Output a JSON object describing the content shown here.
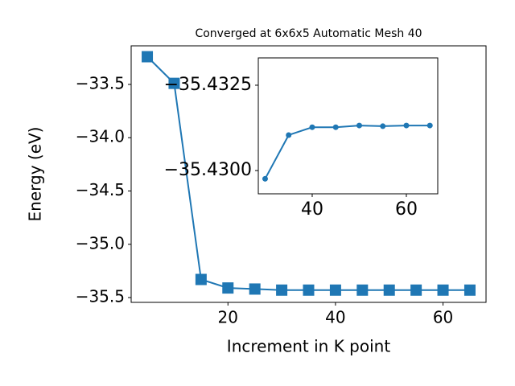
{
  "chart_data": [
    {
      "type": "line",
      "title": "Converged at 6x6x5 Automatic Mesh 40",
      "x_label": "Increment in K point",
      "y_label": "Energy (eV)",
      "marker": "square",
      "color": "#1f77b4",
      "x": [
        5,
        10,
        15,
        20,
        25,
        30,
        35,
        40,
        45,
        50,
        55,
        60,
        65
      ],
      "values": [
        -33.24,
        -33.49,
        -35.33,
        -35.41,
        -35.42,
        -35.43,
        -35.43,
        -35.43,
        -35.43,
        -35.43,
        -35.43,
        -35.43,
        -35.43
      ],
      "xlim": [
        2,
        68
      ],
      "ylim": [
        -35.545,
        -33.138
      ],
      "xticks": [
        20,
        40,
        60
      ],
      "yticks": [
        {
          "value": -33.5,
          "label": "−33.5"
        },
        {
          "value": -34.0,
          "label": "−34.0"
        },
        {
          "value": -34.5,
          "label": "−34.5"
        },
        {
          "value": -35.0,
          "label": "−35.0"
        },
        {
          "value": -35.5,
          "label": "−35.5"
        }
      ]
    },
    {
      "type": "line",
      "marker": "circle",
      "color": "#1f77b4",
      "x": [
        30,
        35,
        40,
        45,
        50,
        55,
        60,
        65
      ],
      "values": [
        -35.42976,
        -35.43104,
        -35.43127,
        -35.43127,
        -35.43132,
        -35.4313,
        -35.43132,
        -35.43132
      ],
      "xlim": [
        28.55,
        66.67
      ],
      "ylim": [
        -35.42932,
        -35.4333
      ],
      "xticks": [
        40,
        60
      ],
      "yticks": [
        {
          "value": -35.4325,
          "label": "−35.4325"
        },
        {
          "value": -35.43,
          "label": "−35.4300"
        }
      ]
    }
  ]
}
